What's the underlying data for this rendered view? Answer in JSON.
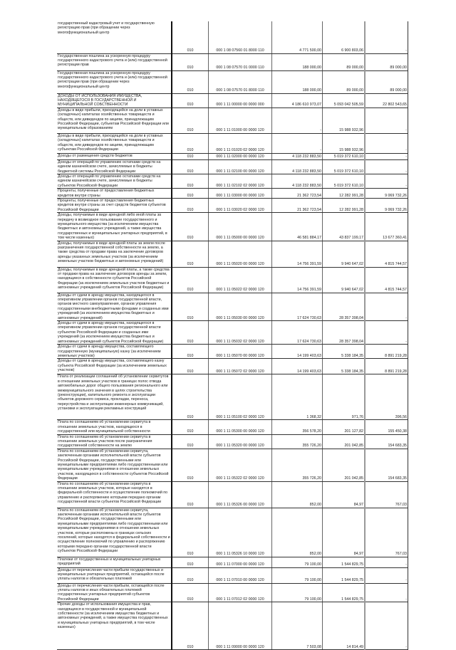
{
  "rows": [
    {
      "desc": "государственный кадастровый учет и государственную регистрацию прав (при обращении через многофункциональный центр",
      "row": "010",
      "code": "000 1 08 07560 01 8000 110",
      "v1": "4 771 500,00",
      "v2": "6 900 803,06",
      "v3": "-"
    },
    {
      "desc": "Государственная пошлина за ускоренную процедуру государственного кадастрового учета и (или) государственной регистрации прав",
      "row": "010",
      "code": "000 1 08 07570 01 0000 110",
      "v1": "188 000,00",
      "v2": "89 000,00",
      "v3": "89 000,00"
    },
    {
      "desc": "Государственная пошлина за ускоренную процедуру государственного кадастрового учета и (или) государственной регистрации прав (при обращении через многофункциональный центр",
      "row": "010",
      "code": "000 1 08 07570 01 8000 110",
      "v1": "188 000,00",
      "v2": "89 000,00",
      "v3": "89 000,00"
    },
    {
      "desc": "ДОХОДЫ ОТ ИСПОЛЬЗОВАНИЯ ИМУЩЕСТВА, НАХОДЯЩЕГОСЯ В ГОСУДАРСТВЕННОЙ И МУНИЦИПАЛЬНОЙ СОБСТВЕННОСТИ",
      "row": "010",
      "code": "000 1 11 00000 00 0000 000",
      "v1": "4 186 610 973,07",
      "v2": "5 093 042 505,59",
      "v3": "22 802 543,65"
    },
    {
      "desc": "Доходы в виде прибыли, приходящейся на доли в уставных (складочных) капиталах хозяйственных товариществ и обществ, или дивидендов по акциям, принадлежащим Российской Федерации, субъектам Российской Федерации или муниципальным образованиям",
      "row": "010",
      "code": "000 1 11 01000 00 0000 120",
      "v1": "-",
      "v2": "15 988 932,96",
      "v3": "-"
    },
    {
      "desc": "Доходы в виде прибыли, приходящейся на доли в уставных (складочных) капиталах хозяйственных товариществ и обществ, или дивидендов по акциям, принадлежащим субъектам Российской Федерации",
      "row": "010",
      "code": "000 1 11 01020 02 0000 120",
      "v1": "-",
      "v2": "15 988 932,96",
      "v3": "-"
    },
    {
      "desc": "Доходы от размещения средств бюджетов",
      "row": "010",
      "code": "000 1 11 02000 00 0000 120",
      "v1": "4 118 232 883,50",
      "v2": "5 019 372 610,10",
      "v3": "-"
    },
    {
      "desc": "Доходы от операций по управлению остатками средств на едином казначейском счете, зачисляемые в бюджеты бюджетной системы Российской Федерации",
      "row": "010",
      "code": "000 1 11 02100 00 0000 120",
      "v1": "4 118 232 883,50",
      "v2": "5 019 372 610,10",
      "v3": "-"
    },
    {
      "desc": "Доходы от операций по управлению остатками средств на едином казначейском счете, зачисляемые в бюджеты субъектов Российской Федерации",
      "row": "010",
      "code": "000 1 11 02102 02 0000 120",
      "v1": "4 118 232 883,50",
      "v2": "5 019 372 610,10",
      "v3": "-"
    },
    {
      "desc": "Проценты, полученные от предоставления бюджетных кредитов внутри страны",
      "row": "010",
      "code": "000 1 11 03000 00 0000 120",
      "v1": "21 362 723,54",
      "v2": "12 282 991,28",
      "v3": "9 069 732,26"
    },
    {
      "desc": "Проценты, полученные от предоставления бюджетных кредитов внутри страны за счет средств бюджетов субъектов Российской Федерации",
      "row": "010",
      "code": "000 1 11 03020 02 0000 120",
      "v1": "21 362 723,54",
      "v2": "12 282 991,28",
      "v3": "9 069 732,26"
    },
    {
      "desc": "Доходы, получаемые в виде арендной либо иной платы за передачу в возмездное пользование государственного и муниципального имущества (за исключением имущества бюджетных и автономных учреждений, а также имущества государственных и муниципальных унитарных предприятий, в том числе казенных)",
      "row": "010",
      "code": "000 1 11 05000 00 0000 120",
      "v1": "46 581 884,17",
      "v2": "43 837 199,17",
      "v3": "13 677 360,41"
    },
    {
      "desc": "Доходы, получаемые в виде арендной платы за земли после разграничения государственной собственности на землю, а также средства от продажи права на заключение договоров аренды указанных земельных участков (за исключением земельных участков бюджетных и автономных учреждений)",
      "row": "010",
      "code": "000 1 11 05020 00 0000 120",
      "v1": "14 756 391,59",
      "v2": "9 940 647,02",
      "v3": "4 815 744,57"
    },
    {
      "desc": "Доходы, получаемые в виде арендной платы, а также средства от продажи права на заключение договоров аренды за земли, находящиеся в собственности субъектов Российской Федерации (за исключением земельных участков бюджетных и автономных учреждений субъектов Российской Федерации)",
      "row": "010",
      "code": "000 1 11 05022 02 0000 120",
      "v1": "14 756 391,59",
      "v2": "9 940 647,02",
      "v3": "4 815 744,57"
    },
    {
      "desc": "Доходы от сдачи в аренду имущества, находящегося в оперативном управлении органов государственной власти, органов местного самоуправления, органов управления государственными внебюджетными фондами и созданных ими учреждений (за исключением имущества бюджетных и автономных учреждений)",
      "row": "010",
      "code": "000 1 11 05030 00 0000 120",
      "v1": "17 624 730,63",
      "v2": "28 357 398,04",
      "v3": "-"
    },
    {
      "desc": "Доходы от сдачи в аренду имущества, находящегося в оперативном управлении органов государственной власти субъектов Российской Федерации и созданных ими учреждений (за исключением имущества бюджетных и автономных учреждений субъектов Российской Федерации)",
      "row": "010",
      "code": "000 1 11 05032 02 0000 120",
      "v1": "17 624 730,63",
      "v2": "28 357 398,04",
      "v3": "-"
    },
    {
      "desc": "Доходы от сдачи в аренду имущества, составляющего государственную (муниципальную) казну (за исключением земельных участков)",
      "row": "010",
      "code": "000 1 11 05070 00 0000 120",
      "v1": "14 199 403,63",
      "v2": "5 338 184,35",
      "v3": "8 891 219,28"
    },
    {
      "desc": "Доходы от сдачи в аренду имущества, составляющего казну субъекта Российской Федерации (за исключением земельных участков)",
      "row": "010",
      "code": "000 1 11 05072 02 0000 120",
      "v1": "14 199 403,63",
      "v2": "5 338 184,35",
      "v3": "8 891 219,28"
    },
    {
      "desc": "Плата от реализации соглашений об установлении сервитутов в отношении земельных участков в границах полос отвода автомобильных дорог общего пользования регионального или межмуниципального значения в целях строительства (реконструкции), капитального ремонта и эксплуатации объектов дорожного сервиса, прокладки, переноса, переустройства и эксплуатации инженерных коммуникаций, установки и эксплуатации рекламных конструкций",
      "row": "010",
      "code": "000 1 11 05100 02 0000 120",
      "v1": "1 368,32",
      "v2": "971,76",
      "v3": "396,56"
    },
    {
      "desc": "Плата по соглашениям об установлении сервитута в отношении земельных участков, находящихся в государственной или муниципальной собственности",
      "row": "010",
      "code": "000 1 11 05300 00 0000 120",
      "v1": "356 578,20",
      "v2": "201 127,82",
      "v3": "155 450,38"
    },
    {
      "desc": "Плата по соглашениям об установлении сервитута в отношении земельных участков после разграничения государственной собственности на землю",
      "row": "010",
      "code": "000 1 11 05320 00 0000 120",
      "v1": "355 726,20",
      "v2": "201 042,85",
      "v3": "154 683,35"
    },
    {
      "desc": "Плата по соглашениям об установлении сервитута, заключенным органами исполнительной власти субъектов Российской Федерации, государственными или муниципальными предприятиями либо государственными или муниципальными учреждениями в отношении земельных участков, находящихся в собственности субъектов Российской Федерации",
      "row": "010",
      "code": "000 1 11 05322 02 0000 120",
      "v1": "355 726,20",
      "v2": "201 042,85",
      "v3": "154 683,35"
    },
    {
      "desc": "Плата по соглашениям об установлении сервитута в отношении земельных участков, которые находятся в федеральной собственности и осуществление полномочий по управлению и распоряжению которыми передано органам государственной власти субъектов Российской Федерации",
      "row": "010",
      "code": "000 1 11 05326 00 0000 120",
      "v1": "852,00",
      "v2": "84,97",
      "v3": "767,03"
    },
    {
      "desc": "Плата по соглашениям об установлении сервитута, заключенным органами исполнительной власти субъектов Российской Федерации, государственными или муниципальными предприятиями либо государственными или муниципальными учреждениями в отношении земельных участков, которые расположены в границах сельских поселений, которые находятся в федеральной собственности и осуществление полномочий по управлению и распоряжению которыми передано органам государственной власти субъектов Российской Федерации",
      "row": "010",
      "code": "000 1 11 05326 10 0000 120",
      "v1": "852,00",
      "v2": "84,97",
      "v3": "767,03"
    },
    {
      "desc": "Платежи от государственных и муниципальных унитарных предприятий",
      "row": "010",
      "code": "000 1 11 07000 00 0000 120",
      "v1": "79 100,00",
      "v2": "1 544 829,75",
      "v3": "-"
    },
    {
      "desc": "Доходы от перечисления части прибыли государственных и муниципальных унитарных предприятий, остающейся после уплаты налогов и обязательных платежей",
      "row": "010",
      "code": "000 1 11 07010 00 0000 120",
      "v1": "79 100,00",
      "v2": "1 544 829,75",
      "v3": "-"
    },
    {
      "desc": "Доходы от перечисления части прибыли, остающейся после уплаты налогов и иных обязательных платежей государственных унитарных предприятий субъектов Российской Федерации",
      "row": "010",
      "code": "000 1 11 07012 02 0000 120",
      "v1": "79 100,00",
      "v2": "1 544 829,75",
      "v3": "-"
    },
    {
      "desc": "Прочие доходы от использования имущества и прав, находящихся в государственной и муниципальной собственности (за исключением имущества бюджетных и автономных учреждений, а также имущества государственных и муниципальных унитарных предприятий, в том числе казенных)",
      "row": "010",
      "code": "000 1 11 09000 00 0000 120",
      "v1": "7 503,08",
      "v2": "14 814,49",
      "v3": "-"
    }
  ]
}
